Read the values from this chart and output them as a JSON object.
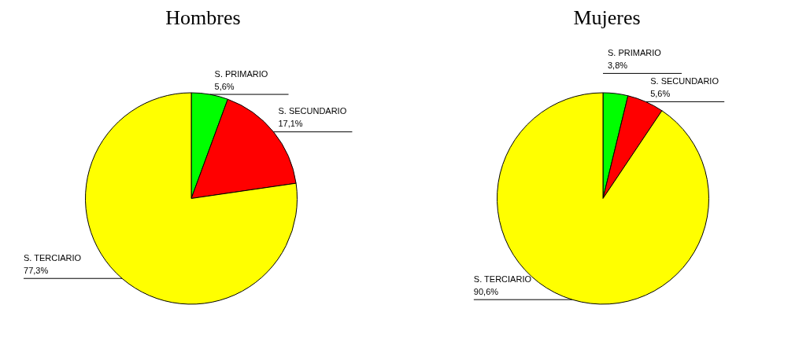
{
  "chart_data": [
    {
      "type": "pie",
      "title": "Hombres",
      "categories": [
        "S. PRIMARIO",
        "S. SECUNDARIO",
        "S. TERCIARIO"
      ],
      "values": [
        5.6,
        17.1,
        77.3
      ],
      "colors": [
        "#00ff00",
        "#ff0000",
        "#ffff00"
      ],
      "value_labels": [
        "5,6%",
        "17,1%",
        "77,3%"
      ]
    },
    {
      "type": "pie",
      "title": "Mujeres",
      "categories": [
        "S. PRIMARIO",
        "S. SECUNDARIO",
        "S. TERCIARIO"
      ],
      "values": [
        3.8,
        5.6,
        90.6
      ],
      "colors": [
        "#00ff00",
        "#ff0000",
        "#ffff00"
      ],
      "value_labels": [
        "3,8%",
        "5,6%",
        "90,6%"
      ]
    }
  ]
}
